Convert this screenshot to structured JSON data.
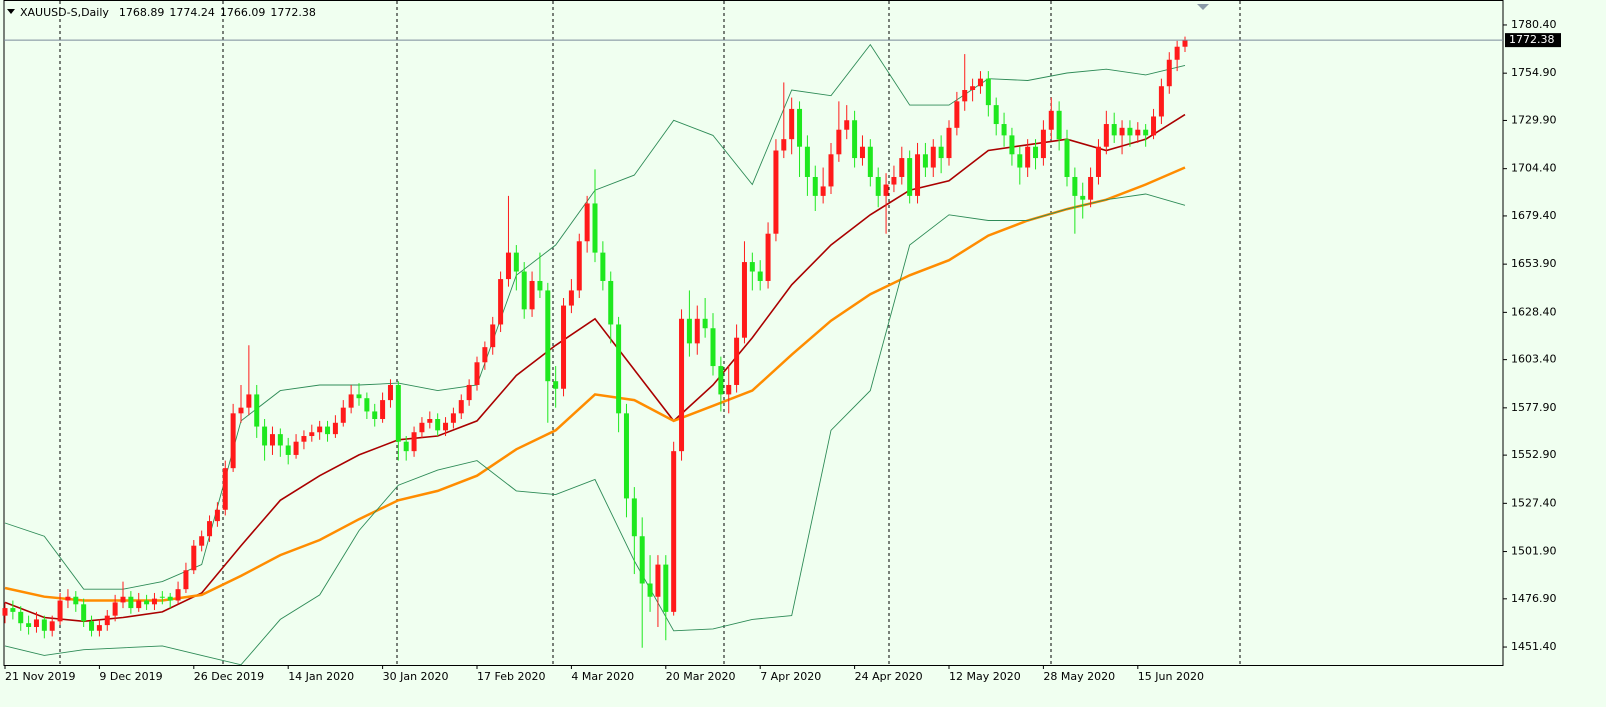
{
  "chart_data": {
    "type": "candlestick",
    "title": "XAUUSD-S,Daily",
    "up_color": "#ff1a1a",
    "down_color": "#1ee81e",
    "categories": [
      "21 Nov 2019",
      null,
      null,
      null,
      null,
      null,
      null,
      null,
      null,
      null,
      null,
      null,
      "9 Dec 2019",
      null,
      null,
      null,
      null,
      null,
      null,
      null,
      null,
      null,
      null,
      null,
      "26 Dec 2019",
      null,
      null,
      null,
      null,
      null,
      null,
      null,
      null,
      null,
      null,
      null,
      "14 Jan 2020",
      null,
      null,
      null,
      null,
      null,
      null,
      null,
      null,
      null,
      null,
      null,
      "30 Jan 2020",
      null,
      null,
      null,
      null,
      null,
      null,
      null,
      null,
      null,
      null,
      null,
      "17 Feb 2020",
      null,
      null,
      null,
      null,
      null,
      null,
      null,
      null,
      null,
      null,
      null,
      "4 Mar 2020",
      null,
      null,
      null,
      null,
      null,
      null,
      null,
      null,
      null,
      null,
      null,
      "20 Mar 2020",
      null,
      null,
      null,
      null,
      null,
      null,
      null,
      null,
      null,
      null,
      null,
      "7 Apr 2020",
      null,
      null,
      null,
      null,
      null,
      null,
      null,
      null,
      null,
      null,
      null,
      "24 Apr 2020",
      null,
      null,
      null,
      null,
      null,
      null,
      null,
      null,
      null,
      null,
      null,
      "12 May 2020",
      null,
      null,
      null,
      null,
      null,
      null,
      null,
      null,
      null,
      null,
      null,
      "28 May 2020",
      null,
      null,
      null,
      null,
      null,
      null,
      null,
      null,
      null,
      null,
      null,
      "15 Jun 2020",
      null,
      null,
      null,
      null,
      null,
      null
    ],
    "ohlc": [
      [
        1468,
        1475,
        1464,
        1472
      ],
      [
        1472,
        1476,
        1466,
        1470
      ],
      [
        1470,
        1473,
        1460,
        1464
      ],
      [
        1464,
        1468,
        1458,
        1462
      ],
      [
        1462,
        1470,
        1459,
        1466
      ],
      [
        1466,
        1468,
        1456,
        1460
      ],
      [
        1460,
        1468,
        1457,
        1465
      ],
      [
        1465,
        1480,
        1463,
        1476
      ],
      [
        1476,
        1482,
        1472,
        1478
      ],
      [
        1478,
        1481,
        1470,
        1474
      ],
      [
        1474,
        1477,
        1462,
        1465
      ],
      [
        1465,
        1468,
        1457,
        1460
      ],
      [
        1460,
        1466,
        1457,
        1463
      ],
      [
        1463,
        1471,
        1460,
        1468
      ],
      [
        1468,
        1479,
        1465,
        1475
      ],
      [
        1475,
        1486,
        1472,
        1478
      ],
      [
        1478,
        1481,
        1469,
        1472
      ],
      [
        1472,
        1480,
        1470,
        1476
      ],
      [
        1476,
        1479,
        1471,
        1474
      ],
      [
        1474,
        1480,
        1471,
        1477
      ],
      [
        1478,
        1481,
        1474,
        1478
      ],
      [
        1478,
        1480,
        1472,
        1476
      ],
      [
        1476,
        1486,
        1474,
        1482
      ],
      [
        1482,
        1496,
        1480,
        1492
      ],
      [
        1492,
        1508,
        1490,
        1505
      ],
      [
        1505,
        1513,
        1502,
        1510
      ],
      [
        1510,
        1521,
        1507,
        1518
      ],
      [
        1518,
        1528,
        1515,
        1524
      ],
      [
        1524,
        1550,
        1521,
        1546
      ],
      [
        1546,
        1580,
        1544,
        1575
      ],
      [
        1575,
        1590,
        1570,
        1578
      ],
      [
        1578,
        1611,
        1574,
        1585
      ],
      [
        1585,
        1590,
        1562,
        1568
      ],
      [
        1568,
        1572,
        1550,
        1558
      ],
      [
        1558,
        1568,
        1553,
        1564
      ],
      [
        1564,
        1567,
        1552,
        1558
      ],
      [
        1558,
        1562,
        1548,
        1553
      ],
      [
        1553,
        1564,
        1551,
        1560
      ],
      [
        1560,
        1566,
        1556,
        1563
      ],
      [
        1563,
        1569,
        1560,
        1565
      ],
      [
        1565,
        1571,
        1561,
        1568
      ],
      [
        1568,
        1571,
        1560,
        1564
      ],
      [
        1564,
        1574,
        1562,
        1570
      ],
      [
        1570,
        1582,
        1568,
        1578
      ],
      [
        1578,
        1590,
        1575,
        1585
      ],
      [
        1585,
        1591,
        1579,
        1583
      ],
      [
        1583,
        1586,
        1572,
        1576
      ],
      [
        1576,
        1580,
        1568,
        1572
      ],
      [
        1572,
        1586,
        1570,
        1582
      ],
      [
        1582,
        1593,
        1578,
        1590
      ],
      [
        1590,
        1592,
        1550,
        1560
      ],
      [
        1560,
        1563,
        1550,
        1555
      ],
      [
        1555,
        1568,
        1552,
        1565
      ],
      [
        1565,
        1573,
        1562,
        1570
      ],
      [
        1570,
        1576,
        1567,
        1572
      ],
      [
        1572,
        1575,
        1563,
        1566
      ],
      [
        1566,
        1573,
        1563,
        1570
      ],
      [
        1570,
        1578,
        1567,
        1575
      ],
      [
        1575,
        1585,
        1572,
        1582
      ],
      [
        1582,
        1593,
        1579,
        1590
      ],
      [
        1590,
        1605,
        1587,
        1602
      ],
      [
        1602,
        1613,
        1598,
        1610
      ],
      [
        1610,
        1626,
        1606,
        1622
      ],
      [
        1622,
        1650,
        1618,
        1646
      ],
      [
        1646,
        1690,
        1642,
        1660
      ],
      [
        1660,
        1664,
        1640,
        1650
      ],
      [
        1650,
        1655,
        1625,
        1630
      ],
      [
        1630,
        1650,
        1626,
        1645
      ],
      [
        1645,
        1660,
        1636,
        1640
      ],
      [
        1640,
        1644,
        1570,
        1592
      ],
      [
        1592,
        1600,
        1578,
        1588
      ],
      [
        1588,
        1636,
        1584,
        1632
      ],
      [
        1632,
        1646,
        1628,
        1640
      ],
      [
        1640,
        1670,
        1636,
        1666
      ],
      [
        1666,
        1690,
        1660,
        1686
      ],
      [
        1686,
        1704,
        1655,
        1660
      ],
      [
        1660,
        1666,
        1640,
        1645
      ],
      [
        1645,
        1650,
        1612,
        1622
      ],
      [
        1622,
        1626,
        1565,
        1575
      ],
      [
        1575,
        1580,
        1520,
        1530
      ],
      [
        1530,
        1536,
        1490,
        1510
      ],
      [
        1510,
        1520,
        1451,
        1485
      ],
      [
        1485,
        1500,
        1470,
        1478
      ],
      [
        1478,
        1500,
        1462,
        1495
      ],
      [
        1495,
        1500,
        1455,
        1470
      ],
      [
        1470,
        1560,
        1468,
        1555
      ],
      [
        1555,
        1630,
        1550,
        1625
      ],
      [
        1625,
        1640,
        1605,
        1612
      ],
      [
        1612,
        1632,
        1606,
        1625
      ],
      [
        1625,
        1636,
        1615,
        1620
      ],
      [
        1620,
        1628,
        1595,
        1600
      ],
      [
        1600,
        1605,
        1576,
        1585
      ],
      [
        1585,
        1600,
        1575,
        1590
      ],
      [
        1590,
        1622,
        1586,
        1615
      ],
      [
        1615,
        1666,
        1612,
        1655
      ],
      [
        1655,
        1660,
        1640,
        1650
      ],
      [
        1650,
        1656,
        1640,
        1645
      ],
      [
        1645,
        1676,
        1641,
        1670
      ],
      [
        1670,
        1720,
        1666,
        1714
      ],
      [
        1714,
        1750,
        1710,
        1720
      ],
      [
        1720,
        1742,
        1712,
        1736
      ],
      [
        1736,
        1740,
        1700,
        1716
      ],
      [
        1716,
        1722,
        1690,
        1700
      ],
      [
        1700,
        1706,
        1682,
        1690
      ],
      [
        1690,
        1705,
        1686,
        1695
      ],
      [
        1695,
        1718,
        1691,
        1712
      ],
      [
        1712,
        1740,
        1708,
        1725
      ],
      [
        1725,
        1738,
        1720,
        1730
      ],
      [
        1730,
        1735,
        1705,
        1710
      ],
      [
        1710,
        1722,
        1706,
        1716
      ],
      [
        1716,
        1720,
        1695,
        1700
      ],
      [
        1700,
        1705,
        1684,
        1690
      ],
      [
        1690,
        1702,
        1670,
        1696
      ],
      [
        1696,
        1706,
        1692,
        1700
      ],
      [
        1700,
        1716,
        1696,
        1710
      ],
      [
        1710,
        1714,
        1686,
        1690
      ],
      [
        1690,
        1718,
        1686,
        1712
      ],
      [
        1712,
        1718,
        1700,
        1705
      ],
      [
        1705,
        1720,
        1700,
        1716
      ],
      [
        1716,
        1722,
        1702,
        1710
      ],
      [
        1710,
        1730,
        1706,
        1726
      ],
      [
        1726,
        1745,
        1722,
        1740
      ],
      [
        1740,
        1765,
        1735,
        1746
      ],
      [
        1746,
        1752,
        1740,
        1748
      ],
      [
        1748,
        1756,
        1744,
        1752
      ],
      [
        1752,
        1756,
        1732,
        1738
      ],
      [
        1738,
        1742,
        1722,
        1728
      ],
      [
        1728,
        1734,
        1716,
        1722
      ],
      [
        1722,
        1726,
        1706,
        1712
      ],
      [
        1712,
        1716,
        1696,
        1705
      ],
      [
        1705,
        1720,
        1700,
        1716
      ],
      [
        1716,
        1720,
        1704,
        1710
      ],
      [
        1710,
        1730,
        1706,
        1725
      ],
      [
        1725,
        1742,
        1720,
        1735
      ],
      [
        1735,
        1740,
        1714,
        1720
      ],
      [
        1720,
        1725,
        1695,
        1700
      ],
      [
        1700,
        1705,
        1670,
        1690
      ],
      [
        1690,
        1697,
        1678,
        1688
      ],
      [
        1688,
        1705,
        1684,
        1700
      ],
      [
        1700,
        1720,
        1696,
        1716
      ],
      [
        1716,
        1735,
        1712,
        1728
      ],
      [
        1728,
        1734,
        1718,
        1722
      ],
      [
        1722,
        1730,
        1712,
        1726
      ],
      [
        1726,
        1730,
        1716,
        1722
      ],
      [
        1722,
        1729,
        1718,
        1725
      ],
      [
        1725,
        1728,
        1716,
        1722
      ],
      [
        1722,
        1736,
        1720,
        1732
      ],
      [
        1732,
        1752,
        1728,
        1748
      ],
      [
        1748,
        1766,
        1744,
        1762
      ],
      [
        1762,
        1772,
        1756,
        1768.89
      ],
      [
        1768.89,
        1774.24,
        1766.09,
        1772.38
      ]
    ],
    "x": [
      0,
      5,
      10,
      15,
      20,
      25,
      30,
      35,
      40,
      45,
      50,
      55,
      60,
      65,
      70,
      75,
      80,
      85,
      90,
      95,
      100,
      105,
      110,
      115,
      120,
      125,
      130,
      135,
      140,
      145,
      150
    ],
    "overlays": [
      {
        "color": "#aa0000",
        "values": [
          1475,
          1467,
          1465,
          1467,
          1470,
          1480,
          1505,
          1529,
          1542,
          1553,
          1561,
          1563,
          1571,
          1595,
          1611,
          1625,
          1598,
          1571,
          1590,
          1615,
          1643,
          1664,
          1680,
          1693,
          1698,
          1714,
          1717,
          1720,
          1714,
          1720,
          1733
        ]
      },
      {
        "color": "#ff8c00",
        "values": [
          1482.6,
          1478,
          1476,
          1476,
          1476,
          1479,
          1489,
          1500,
          1508,
          1519,
          1529,
          1534,
          1542,
          1556,
          1566,
          1585,
          1582,
          1571,
          1579,
          1587,
          1606,
          1624,
          1638,
          1648,
          1656,
          1669,
          1677,
          1683,
          1688,
          1696,
          1705
        ]
      },
      {
        "color": "#2e8b57",
        "values": [
          1517,
          1510,
          1482,
          1482,
          1486,
          1495,
          1571,
          1587,
          1590,
          1590,
          1591,
          1587,
          1590,
          1648,
          1664,
          1693,
          1701,
          1730,
          1722,
          1696,
          1746,
          1743,
          1770,
          1738,
          1738,
          1752,
          1751,
          1755,
          1757,
          1754,
          1759
        ]
      },
      {
        "color": "#2e8b57",
        "values": [
          1452,
          1447,
          1450,
          1451,
          1452,
          1447,
          1442,
          1466,
          1479,
          1513,
          1537,
          1545,
          1550,
          1534,
          1532,
          1540,
          1497,
          1460,
          1461,
          1466,
          1468,
          1566,
          1587,
          1664,
          1680,
          1677,
          1677,
          1683,
          1688,
          1691,
          1685
        ]
      }
    ],
    "ylim": [
      1441.9,
      1793.6
    ],
    "yticks": [
      {
        "value": 1780.4,
        "label": "1780.40"
      },
      {
        "value": 1754.9,
        "label": "1754.90"
      },
      {
        "value": 1729.9,
        "label": "1729.90"
      },
      {
        "value": 1704.4,
        "label": "1704.40"
      },
      {
        "value": 1679.4,
        "label": "1679.40"
      },
      {
        "value": 1653.9,
        "label": "1653.90"
      },
      {
        "value": 1628.4,
        "label": "1628.40"
      },
      {
        "value": 1603.4,
        "label": "1603.40"
      },
      {
        "value": 1577.9,
        "label": "1577.90"
      },
      {
        "value": 1552.9,
        "label": "1552.90"
      },
      {
        "value": 1527.4,
        "label": "1527.40"
      },
      {
        "value": 1501.9,
        "label": "1501.90"
      },
      {
        "value": 1476.9,
        "label": "1476.90"
      },
      {
        "value": 1451.4,
        "label": "1451.40"
      }
    ]
  }
}
